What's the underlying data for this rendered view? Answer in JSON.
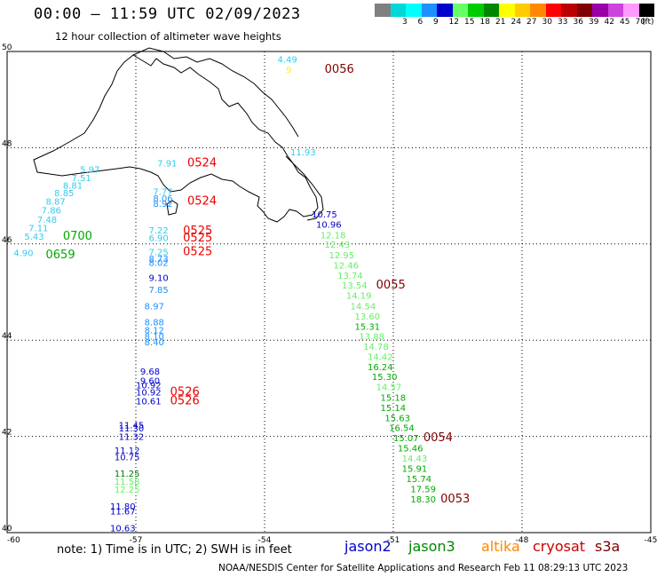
{
  "header": {
    "title": "00:00 – 11:59 UTC 02/09/2023",
    "subtitle": "12 hour collection of altimeter wave heights"
  },
  "colorbar": {
    "unit_label": "(ft)",
    "levels": [
      {
        "label": "",
        "color": "#808080"
      },
      {
        "label": "3",
        "color": "#00d8d8"
      },
      {
        "label": "6",
        "color": "#00ffff"
      },
      {
        "label": "9",
        "color": "#1e90ff"
      },
      {
        "label": "12",
        "color": "#0000cc"
      },
      {
        "label": "15",
        "color": "#66ff66"
      },
      {
        "label": "18",
        "color": "#00cc00"
      },
      {
        "label": "21",
        "color": "#008800"
      },
      {
        "label": "24",
        "color": "#ffff00"
      },
      {
        "label": "27",
        "color": "#ffcc00"
      },
      {
        "label": "30",
        "color": "#ff8800"
      },
      {
        "label": "33",
        "color": "#ff0000"
      },
      {
        "label": "36",
        "color": "#bb0000"
      },
      {
        "label": "39",
        "color": "#7f0000"
      },
      {
        "label": "42",
        "color": "#9900aa"
      },
      {
        "label": "45",
        "color": "#cc44dd"
      },
      {
        "label": "70",
        "color": "#ff99ff"
      },
      {
        "label": "",
        "color": "#000000"
      }
    ]
  },
  "map": {
    "lon_range": [
      -60,
      -45
    ],
    "lat_range": [
      40,
      50
    ],
    "lon_ticks": [
      "-60",
      "-57",
      "-54",
      "-51",
      "-48",
      "-45"
    ],
    "lat_ticks": [
      "50",
      "48",
      "46",
      "44",
      "42",
      "40"
    ],
    "colors": {
      "cyan": "#33ccee",
      "light_blue": "#1e90ff",
      "blue": "#0000cc",
      "light_green": "#66ee66",
      "green": "#00aa00",
      "dark_green": "#007700",
      "yellow": "#ffee33",
      "red": "#ee0000",
      "dark_red": "#7f0000"
    },
    "wave_labels": [
      {
        "text": "4.49",
        "lon": -53.7,
        "lat": 49.77,
        "color": "cyan"
      },
      {
        "text": "9",
        "lon": -53.5,
        "lat": 49.56,
        "color": "yellow"
      },
      {
        "text": "0056",
        "lon": -52.6,
        "lat": 49.56,
        "color": "dark_red"
      },
      {
        "text": "5.97",
        "lon": -58.3,
        "lat": 47.48,
        "color": "cyan"
      },
      {
        "text": "7.51",
        "lon": -58.5,
        "lat": 47.31,
        "color": "cyan"
      },
      {
        "text": "8.81",
        "lon": -58.7,
        "lat": 47.15,
        "color": "cyan"
      },
      {
        "text": "8.85",
        "lon": -58.9,
        "lat": 46.99,
        "color": "cyan"
      },
      {
        "text": "8.87",
        "lon": -59.1,
        "lat": 46.82,
        "color": "cyan"
      },
      {
        "text": "7.86",
        "lon": -59.2,
        "lat": 46.63,
        "color": "cyan"
      },
      {
        "text": "7.48",
        "lon": -59.3,
        "lat": 46.44,
        "color": "cyan"
      },
      {
        "text": "7.11",
        "lon": -59.5,
        "lat": 46.26,
        "color": "cyan"
      },
      {
        "text": "5.43",
        "lon": -59.6,
        "lat": 46.09,
        "color": "cyan"
      },
      {
        "text": "0700",
        "lon": -58.7,
        "lat": 46.09,
        "color": "green"
      },
      {
        "text": "4.90",
        "lon": -59.85,
        "lat": 45.75,
        "color": "cyan"
      },
      {
        "text": "0659",
        "lon": -59.1,
        "lat": 45.7,
        "color": "green"
      },
      {
        "text": "7.91",
        "lon": -56.5,
        "lat": 47.61,
        "color": "cyan"
      },
      {
        "text": "0524",
        "lon": -55.8,
        "lat": 47.61,
        "color": "red"
      },
      {
        "text": "7.77",
        "lon": -56.6,
        "lat": 47.02,
        "color": "cyan"
      },
      {
        "text": "8.06",
        "lon": -56.6,
        "lat": 46.88,
        "color": "light_blue"
      },
      {
        "text": "8.92",
        "lon": -56.6,
        "lat": 46.77,
        "color": "light_blue"
      },
      {
        "text": "0524",
        "lon": -55.8,
        "lat": 46.82,
        "color": "red"
      },
      {
        "text": "7.22",
        "lon": -56.7,
        "lat": 46.22,
        "color": "cyan"
      },
      {
        "text": "0525",
        "lon": -55.9,
        "lat": 46.2,
        "color": "red"
      },
      {
        "text": "6.90",
        "lon": -56.7,
        "lat": 46.06,
        "color": "cyan"
      },
      {
        "text": "0525",
        "lon": -55.9,
        "lat": 46.05,
        "color": "red"
      },
      {
        "text": "7.25",
        "lon": -56.7,
        "lat": 45.77,
        "color": "cyan"
      },
      {
        "text": "0525",
        "lon": -55.9,
        "lat": 45.77,
        "color": "red"
      },
      {
        "text": "8.73",
        "lon": -56.7,
        "lat": 45.63,
        "color": "light_blue"
      },
      {
        "text": "8.02",
        "lon": -56.7,
        "lat": 45.54,
        "color": "light_blue"
      },
      {
        "text": "9.10",
        "lon": -56.7,
        "lat": 45.23,
        "color": "blue"
      },
      {
        "text": "7.85",
        "lon": -56.7,
        "lat": 44.98,
        "color": "light_blue"
      },
      {
        "text": "8.97",
        "lon": -56.8,
        "lat": 44.64,
        "color": "light_blue"
      },
      {
        "text": "8.88",
        "lon": -56.8,
        "lat": 44.31,
        "color": "light_blue"
      },
      {
        "text": "8.12",
        "lon": -56.8,
        "lat": 44.14,
        "color": "light_blue"
      },
      {
        "text": "8.10",
        "lon": -56.8,
        "lat": 44.01,
        "color": "light_blue"
      },
      {
        "text": "8.40",
        "lon": -56.8,
        "lat": 43.89,
        "color": "light_blue"
      },
      {
        "text": "9.68",
        "lon": -56.9,
        "lat": 43.28,
        "color": "blue"
      },
      {
        "text": "9.60",
        "lon": -56.9,
        "lat": 43.09,
        "color": "blue"
      },
      {
        "text": "10.92",
        "lon": -57.0,
        "lat": 43.0,
        "color": "blue"
      },
      {
        "text": "10.92",
        "lon": -57.0,
        "lat": 42.85,
        "color": "blue"
      },
      {
        "text": "0526",
        "lon": -56.2,
        "lat": 42.85,
        "color": "red"
      },
      {
        "text": "10.61",
        "lon": -57.0,
        "lat": 42.67,
        "color": "blue"
      },
      {
        "text": "0526",
        "lon": -56.2,
        "lat": 42.67,
        "color": "red"
      },
      {
        "text": "11.45",
        "lon": -57.4,
        "lat": 42.17,
        "color": "blue"
      },
      {
        "text": "11.30",
        "lon": -57.4,
        "lat": 42.1,
        "color": "blue"
      },
      {
        "text": "11.32",
        "lon": -57.4,
        "lat": 41.93,
        "color": "blue"
      },
      {
        "text": "11.12",
        "lon": -57.5,
        "lat": 41.64,
        "color": "blue"
      },
      {
        "text": "10.75",
        "lon": -57.5,
        "lat": 41.5,
        "color": "blue"
      },
      {
        "text": "11.25",
        "lon": -57.5,
        "lat": 41.16,
        "color": "dark_green"
      },
      {
        "text": "11.58",
        "lon": -57.5,
        "lat": 41.0,
        "color": "light_green"
      },
      {
        "text": "12.25",
        "lon": -57.5,
        "lat": 40.83,
        "color": "light_green"
      },
      {
        "text": "11.80",
        "lon": -57.6,
        "lat": 40.48,
        "color": "blue"
      },
      {
        "text": "11.67",
        "lon": -57.6,
        "lat": 40.38,
        "color": "blue"
      },
      {
        "text": "10.63",
        "lon": -57.6,
        "lat": 40.03,
        "color": "blue"
      },
      {
        "text": "11.93",
        "lon": -53.4,
        "lat": 47.84,
        "color": "cyan"
      },
      {
        "text": "10.75",
        "lon": -52.9,
        "lat": 46.55,
        "color": "blue"
      },
      {
        "text": "10.96",
        "lon": -52.8,
        "lat": 46.34,
        "color": "blue"
      },
      {
        "text": "12.18",
        "lon": -52.7,
        "lat": 46.12,
        "color": "light_green"
      },
      {
        "text": "12.43",
        "lon": -52.6,
        "lat": 45.92,
        "color": "light_green"
      },
      {
        "text": "12.95",
        "lon": -52.5,
        "lat": 45.7,
        "color": "light_green"
      },
      {
        "text": "12.46",
        "lon": -52.4,
        "lat": 45.49,
        "color": "light_green"
      },
      {
        "text": "13.74",
        "lon": -52.3,
        "lat": 45.28,
        "color": "light_green"
      },
      {
        "text": "13.54",
        "lon": -52.2,
        "lat": 45.07,
        "color": "light_green"
      },
      {
        "text": "0055",
        "lon": -51.4,
        "lat": 45.07,
        "color": "dark_red"
      },
      {
        "text": "14.19",
        "lon": -52.1,
        "lat": 44.86,
        "color": "light_green"
      },
      {
        "text": "14.54",
        "lon": -52.0,
        "lat": 44.64,
        "color": "light_green"
      },
      {
        "text": "13.60",
        "lon": -51.9,
        "lat": 44.43,
        "color": "light_green"
      },
      {
        "text": "15.31",
        "lon": -51.9,
        "lat": 44.22,
        "color": "green"
      },
      {
        "text": "13.88",
        "lon": -51.8,
        "lat": 44.01,
        "color": "light_green"
      },
      {
        "text": "14.78",
        "lon": -51.7,
        "lat": 43.8,
        "color": "light_green"
      },
      {
        "text": "14.42",
        "lon": -51.6,
        "lat": 43.59,
        "color": "light_green"
      },
      {
        "text": "16.24",
        "lon": -51.6,
        "lat": 43.38,
        "color": "green"
      },
      {
        "text": "15.30",
        "lon": -51.5,
        "lat": 43.17,
        "color": "green"
      },
      {
        "text": "14.57",
        "lon": -51.4,
        "lat": 42.96,
        "color": "light_green"
      },
      {
        "text": "15.18",
        "lon": -51.3,
        "lat": 42.74,
        "color": "green"
      },
      {
        "text": "15.14",
        "lon": -51.3,
        "lat": 42.53,
        "color": "green"
      },
      {
        "text": "15.63",
        "lon": -51.2,
        "lat": 42.32,
        "color": "green"
      },
      {
        "text": "16.54",
        "lon": -51.1,
        "lat": 42.11,
        "color": "green"
      },
      {
        "text": "15.07",
        "lon": -51.0,
        "lat": 41.9,
        "color": "green"
      },
      {
        "text": "0054",
        "lon": -50.3,
        "lat": 41.9,
        "color": "dark_red"
      },
      {
        "text": "15.46",
        "lon": -50.9,
        "lat": 41.69,
        "color": "green"
      },
      {
        "text": "14.43",
        "lon": -50.8,
        "lat": 41.48,
        "color": "light_green"
      },
      {
        "text": "15.91",
        "lon": -50.8,
        "lat": 41.26,
        "color": "green"
      },
      {
        "text": "15.74",
        "lon": -50.7,
        "lat": 41.05,
        "color": "green"
      },
      {
        "text": "17.59",
        "lon": -50.6,
        "lat": 40.84,
        "color": "green"
      },
      {
        "text": "18.30",
        "lon": -50.6,
        "lat": 40.63,
        "color": "green"
      },
      {
        "text": "0053",
        "lon": -49.9,
        "lat": 40.63,
        "color": "dark_red"
      }
    ]
  },
  "note": "note: 1) Time is in UTC; 2) SWH is in feet",
  "legend": [
    {
      "label": "jason2",
      "color": "#0000cc"
    },
    {
      "label": "jason3",
      "color": "#008800"
    },
    {
      "label": "altika",
      "color": "#ff8800"
    },
    {
      "label": "cryosat",
      "color": "#cc0000"
    },
    {
      "label": "s3a",
      "color": "#7f0000"
    }
  ],
  "footer": "NOAA/NESDIS Center for Satellite Applications and Research   Feb 11 08:29:13 UTC 2023"
}
